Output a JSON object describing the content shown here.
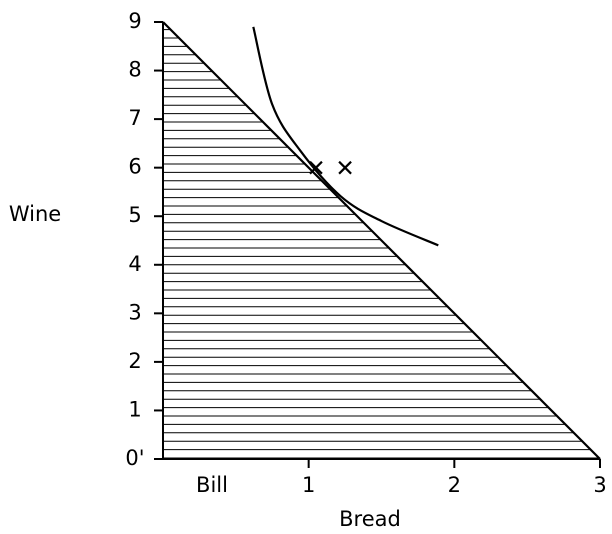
{
  "chart_data": {
    "type": "line",
    "xlabel": "Bread",
    "ylabel": "Wine",
    "origin_label": "Bill",
    "xlim": [
      0,
      3
    ],
    "ylim": [
      0,
      9
    ],
    "xticks": [
      1,
      2,
      3
    ],
    "yticks": [
      {
        "value": 0,
        "label": "0'"
      },
      1,
      2,
      3,
      4,
      5,
      6,
      7,
      8,
      9
    ],
    "series": [
      {
        "color": "#000000",
        "fill": "hatch",
        "x": [
          0,
          3
        ],
        "values": [
          9,
          0
        ]
      },
      {
        "color": "#000000",
        "x": [
          0.62,
          0.75,
          0.94,
          1.22,
          1.5,
          1.89
        ],
        "values": [
          8.9,
          7.3,
          6.36,
          5.41,
          4.9,
          4.4
        ]
      },
      {
        "color": "#000000",
        "marker": "x",
        "x": [
          1.05,
          1.25
        ],
        "values": [
          6,
          6
        ]
      }
    ]
  }
}
